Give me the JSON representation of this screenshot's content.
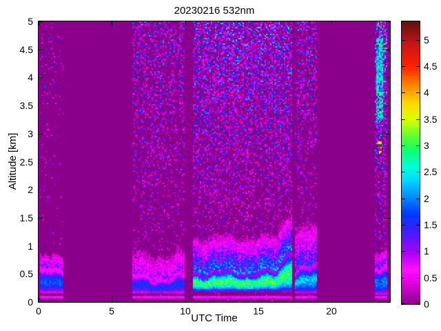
{
  "chart_data": {
    "type": "heatmap",
    "title": "20230216 532nm",
    "xlabel": "UTC Time",
    "ylabel": "Altitude [km]",
    "x_range": [
      0,
      24
    ],
    "y_range": [
      0,
      5
    ],
    "x_tick_values": [
      0,
      5,
      10,
      15,
      20
    ],
    "x_tick_labels": [
      "0",
      "5",
      "10",
      "15",
      "20"
    ],
    "y_tick_values": [
      0,
      0.5,
      1,
      1.5,
      2,
      2.5,
      3,
      3.5,
      4,
      4.5,
      5
    ],
    "y_tick_labels": [
      "0",
      "0.5",
      "1",
      "1.5",
      "2",
      "2.5",
      "3",
      "3.5",
      "4",
      "4.5",
      "5"
    ],
    "background_color": "#8b008b",
    "colormap": [
      [
        0.0,
        "#8b008b"
      ],
      [
        0.45,
        "#e800e8"
      ],
      [
        0.65,
        "#ff10ff"
      ],
      [
        0.95,
        "#b000f8"
      ],
      [
        1.3,
        "#5018ff"
      ],
      [
        1.7,
        "#0038ff"
      ],
      [
        2.05,
        "#0090ff"
      ],
      [
        2.35,
        "#00d8ff"
      ],
      [
        2.6,
        "#00ffd8"
      ],
      [
        2.9,
        "#10ff70"
      ],
      [
        3.15,
        "#58ff30"
      ],
      [
        3.5,
        "#d8ff00"
      ],
      [
        3.8,
        "#ffd800"
      ],
      [
        4.1,
        "#ff9000"
      ],
      [
        4.5,
        "#ff2000"
      ],
      [
        4.9,
        "#c81616"
      ],
      [
        5.35,
        "#5f1010"
      ]
    ],
    "colorbar": {
      "range": [
        0,
        5.35
      ],
      "tick_values": [
        0,
        0.5,
        1,
        1.5,
        2,
        2.5,
        3,
        3.5,
        4,
        4.5,
        5
      ],
      "tick_labels": [
        "0",
        "0.5",
        "1",
        "1.5",
        "2",
        "2.5",
        "3",
        "3.5",
        "4",
        "4.5",
        "5"
      ]
    },
    "segments": [
      {
        "t0": 0.05,
        "t1": 1.72,
        "layer_base": 0.17,
        "layer_top": 0.58,
        "wiggle": 0.05,
        "core_v": 1.75,
        "fade_h": 0.32,
        "noise_d": 0.06,
        "noise_hi": 1.0,
        "line": true
      },
      {
        "t0": 6.38,
        "t1": 9.95,
        "layer_base": 0.16,
        "layer_top": 0.46,
        "wiggle": 0.07,
        "core_v": 1.55,
        "fade_h": 0.55,
        "noise_d": 0.3,
        "noise_hi": 1.2,
        "line": true
      },
      {
        "t0": 10.52,
        "t1": 17.28,
        "layer_base": 0.2,
        "layer_top": 0.55,
        "wiggle": 0.05,
        "core_v": 2.95,
        "fade_h": 0.72,
        "noise_d": 0.5,
        "noise_hi": 1.5,
        "line": true,
        "bump": {
          "t_start": 16.2,
          "rate": 0.5,
          "max": 0.45
        }
      },
      {
        "t0": 17.55,
        "t1": 19.05,
        "layer_base": 0.18,
        "layer_top": 0.62,
        "wiggle": 0.08,
        "core_v": 2.25,
        "fade_h": 0.9,
        "noise_d": 0.32,
        "noise_hi": 1.3,
        "line": true
      },
      {
        "t0": 22.98,
        "t1": 23.82,
        "layer_base": 0.15,
        "layer_top": 0.68,
        "wiggle": 0.05,
        "core_v": 1.95,
        "fade_h": 0.35,
        "noise_d": 0.55,
        "noise_hi": 2.2,
        "line": true,
        "streak": {
          "t0": 23.05,
          "t1": 23.5,
          "z0": 3.2,
          "z1": 4.7,
          "v0": 1.9,
          "v1": 3.0,
          "p": 0.75
        },
        "spot": {
          "t": 23.3,
          "z": 2.75,
          "v": 4.5
        }
      }
    ]
  }
}
